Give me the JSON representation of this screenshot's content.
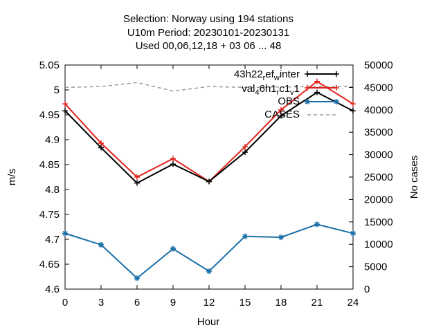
{
  "chart_data": {
    "type": "line",
    "title_lines": [
      "Selection: Norway using   194 stations",
      "U10m   Period: 20230101-20230131",
      "Used  00,06,12,18  + 03 06 ... 48"
    ],
    "xlabel": "Hour",
    "ylabel": "m/s",
    "y2label": "No cases",
    "x": [
      0,
      3,
      6,
      9,
      12,
      15,
      18,
      21,
      24
    ],
    "xticks": [
      "0",
      "3",
      "6",
      "9",
      "12",
      "15",
      "18",
      "21",
      "24"
    ],
    "xlim": [
      0,
      24
    ],
    "ylim": [
      4.6,
      5.05
    ],
    "yticks": [
      "4.6",
      "4.65",
      "4.7",
      "4.75",
      "4.8",
      "4.85",
      "4.9",
      "4.95",
      "5",
      "5.05"
    ],
    "y2lim": [
      0,
      50000
    ],
    "y2ticks": [
      "0",
      "5000",
      "10000",
      "15000",
      "20000",
      "25000",
      "30000",
      "35000",
      "40000",
      "45000",
      "50000"
    ],
    "grid": false,
    "legend_position": "top-right",
    "series": [
      {
        "name_parts": {
          "base": "43h22",
          "s1": "r",
          "mid": "ef",
          "s2": "w",
          "tail": "inter"
        },
        "color": "#000000",
        "marker": "plus",
        "axis": "y",
        "values": [
          4.958,
          4.884,
          4.813,
          4.851,
          4.816,
          4.875,
          4.948,
          4.995,
          4.958
        ]
      },
      {
        "name_parts": {
          "base": "val",
          "s1": "4",
          "mid": "6h1",
          "s2": "r",
          "mid2": "c1",
          "s3": "v",
          "tail": "1"
        },
        "color": "#e0231c",
        "marker": "plus",
        "axis": "y",
        "values": [
          4.972,
          4.893,
          4.825,
          4.862,
          4.816,
          4.886,
          4.96,
          5.017,
          4.972
        ]
      },
      {
        "name": "OBS",
        "color": "#1a6fa8",
        "marker": "star",
        "axis": "y",
        "values": [
          4.712,
          4.689,
          4.622,
          4.681,
          4.636,
          4.706,
          4.704,
          4.73,
          4.712
        ]
      },
      {
        "name": "CASES",
        "color": "#999999",
        "dashed": true,
        "axis": "y2",
        "values": [
          45000,
          45200,
          46100,
          44200,
          45200,
          45000,
          45100,
          45200,
          45200
        ]
      }
    ]
  }
}
